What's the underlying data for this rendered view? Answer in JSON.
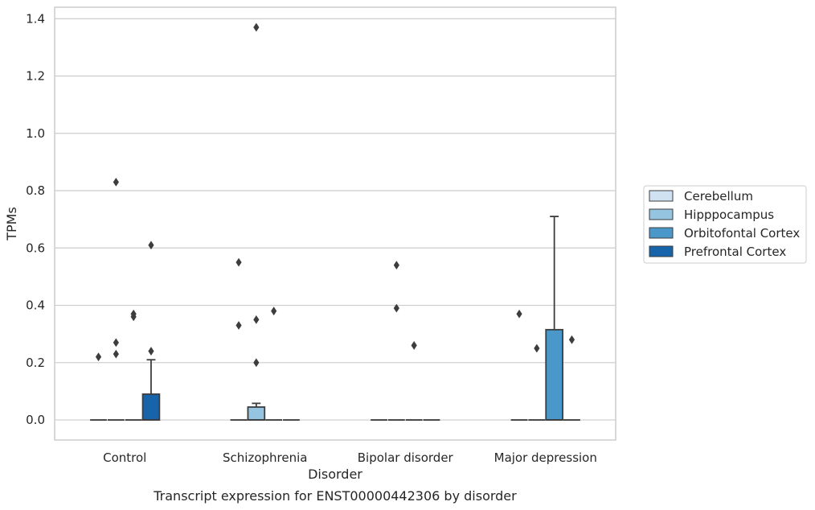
{
  "colors": {
    "Cerebellum": "#d0e1f2",
    "Hipppocampus": "#94c4df",
    "Orbitofontal Cortex": "#4a98c9",
    "Prefrontal Cortex": "#1764ab",
    "grid": "#cccccc",
    "frame": "#cccccc",
    "box_edge": "#3d3d3d"
  },
  "chart_data": {
    "type": "boxplot",
    "caption": "Transcript expression for ENST00000442306 by disorder",
    "xlabel": "Disorder",
    "ylabel": "TPMs",
    "ylim": [
      -0.07,
      1.44
    ],
    "yticks": [
      0.0,
      0.2,
      0.4,
      0.6,
      0.8,
      1.0,
      1.2,
      1.4
    ],
    "ytick_labels": [
      "0.0",
      "0.2",
      "0.4",
      "0.6",
      "0.8",
      "1.0",
      "1.2",
      "1.4"
    ],
    "grid": "horizontal",
    "legend_position": "right",
    "categories": [
      "Control",
      "Schizophrenia",
      "Bipolar disorder",
      "Major depression"
    ],
    "hues": [
      "Cerebellum",
      "Hipppocampus",
      "Orbitofontal Cortex",
      "Prefrontal Cortex"
    ],
    "boxes": [
      {
        "category": "Control",
        "hue": "Cerebellum",
        "q1": 0,
        "median": 0,
        "q3": 0,
        "whisker_low": 0,
        "whisker_high": 0,
        "outliers": [
          0.22
        ]
      },
      {
        "category": "Control",
        "hue": "Hipppocampus",
        "q1": 0,
        "median": 0,
        "q3": 0,
        "whisker_low": 0,
        "whisker_high": 0,
        "outliers": [
          0.83,
          0.27,
          0.23
        ]
      },
      {
        "category": "Control",
        "hue": "Orbitofontal Cortex",
        "q1": 0,
        "median": 0,
        "q3": 0,
        "whisker_low": 0,
        "whisker_high": 0,
        "outliers": [
          0.37,
          0.36
        ]
      },
      {
        "category": "Control",
        "hue": "Prefrontal Cortex",
        "q1": 0,
        "median": 0,
        "q3": 0.09,
        "whisker_low": 0,
        "whisker_high": 0.21,
        "outliers": [
          0.61,
          0.24
        ]
      },
      {
        "category": "Schizophrenia",
        "hue": "Cerebellum",
        "q1": 0,
        "median": 0,
        "q3": 0,
        "whisker_low": 0,
        "whisker_high": 0,
        "outliers": [
          0.55,
          0.33
        ]
      },
      {
        "category": "Schizophrenia",
        "hue": "Hipppocampus",
        "q1": 0,
        "median": 0,
        "q3": 0.045,
        "whisker_low": 0,
        "whisker_high": 0.058,
        "outliers": [
          1.37,
          0.35,
          0.2
        ]
      },
      {
        "category": "Schizophrenia",
        "hue": "Orbitofontal Cortex",
        "q1": 0,
        "median": 0,
        "q3": 0,
        "whisker_low": 0,
        "whisker_high": 0,
        "outliers": [
          0.38
        ]
      },
      {
        "category": "Schizophrenia",
        "hue": "Prefrontal Cortex",
        "q1": 0,
        "median": 0,
        "q3": 0,
        "whisker_low": 0,
        "whisker_high": 0,
        "outliers": []
      },
      {
        "category": "Bipolar disorder",
        "hue": "Cerebellum",
        "q1": 0,
        "median": 0,
        "q3": 0,
        "whisker_low": 0,
        "whisker_high": 0,
        "outliers": []
      },
      {
        "category": "Bipolar disorder",
        "hue": "Hipppocampus",
        "q1": 0,
        "median": 0,
        "q3": 0,
        "whisker_low": 0,
        "whisker_high": 0,
        "outliers": [
          0.54,
          0.39
        ]
      },
      {
        "category": "Bipolar disorder",
        "hue": "Orbitofontal Cortex",
        "q1": 0,
        "median": 0,
        "q3": 0,
        "whisker_low": 0,
        "whisker_high": 0,
        "outliers": [
          0.26
        ]
      },
      {
        "category": "Bipolar disorder",
        "hue": "Prefrontal Cortex",
        "q1": 0,
        "median": 0,
        "q3": 0,
        "whisker_low": 0,
        "whisker_high": 0,
        "outliers": []
      },
      {
        "category": "Major depression",
        "hue": "Cerebellum",
        "q1": 0,
        "median": 0,
        "q3": 0,
        "whisker_low": 0,
        "whisker_high": 0,
        "outliers": [
          0.37
        ]
      },
      {
        "category": "Major depression",
        "hue": "Hipppocampus",
        "q1": 0,
        "median": 0,
        "q3": 0,
        "whisker_low": 0,
        "whisker_high": 0,
        "outliers": [
          0.25
        ]
      },
      {
        "category": "Major depression",
        "hue": "Orbitofontal Cortex",
        "q1": 0,
        "median": 0,
        "q3": 0.315,
        "whisker_low": 0,
        "whisker_high": 0.71,
        "outliers": []
      },
      {
        "category": "Major depression",
        "hue": "Prefrontal Cortex",
        "q1": 0,
        "median": 0,
        "q3": 0,
        "whisker_low": 0,
        "whisker_high": 0,
        "outliers": [
          0.28
        ]
      }
    ]
  }
}
